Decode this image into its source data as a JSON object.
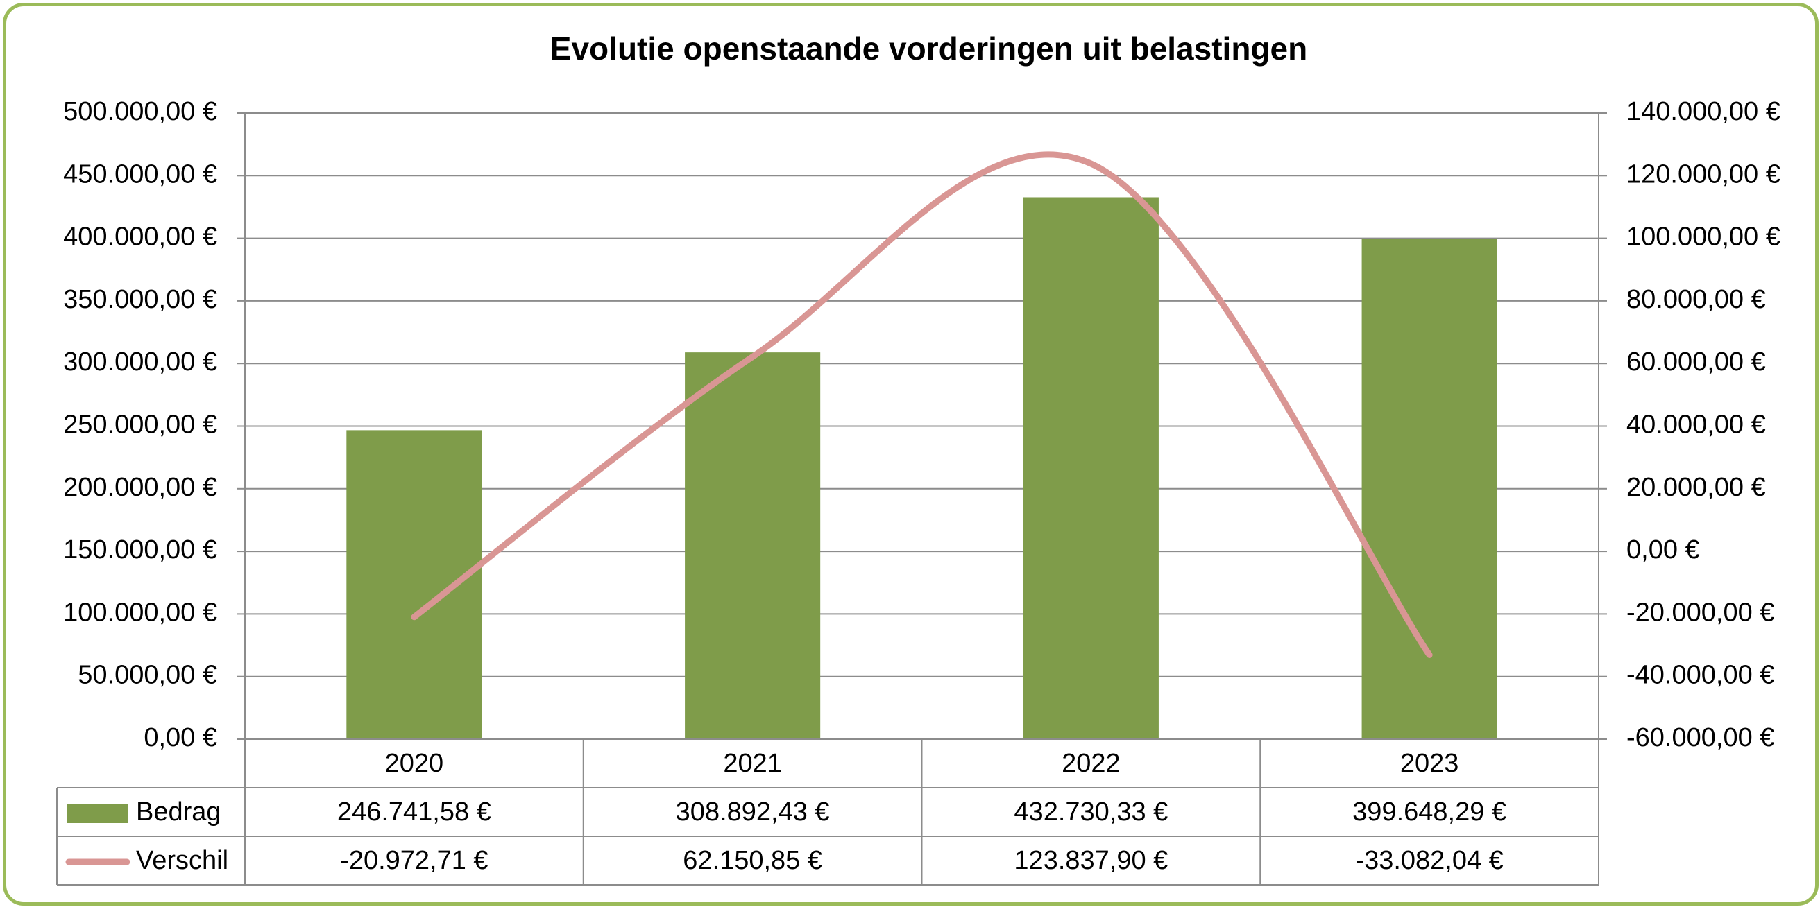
{
  "chart_data": {
    "type": "bar",
    "title": "Evolutie openstaande vorderingen uit belastingen",
    "categories": [
      "2020",
      "2021",
      "2022",
      "2023"
    ],
    "series": [
      {
        "name": "Bedrag",
        "type": "bar",
        "axis": "left",
        "color": "#7f9c4a",
        "values": [
          246741.58,
          308892.43,
          432730.33,
          399648.29
        ],
        "labels": [
          "246.741,58 €",
          "308.892,43 €",
          "432.730,33 €",
          "399.648,29 €"
        ]
      },
      {
        "name": "Verschil",
        "type": "line",
        "smooth": true,
        "axis": "right",
        "color": "#d99694",
        "values": [
          -20972.71,
          62150.85,
          123837.9,
          -33082.04
        ],
        "labels": [
          "-20.972,71 €",
          "62.150,85 €",
          "123.837,90 €",
          "-33.082,04 €"
        ]
      }
    ],
    "y_left": {
      "ylim": [
        0,
        500000
      ],
      "ticks": [
        0,
        50000,
        100000,
        150000,
        200000,
        250000,
        300000,
        350000,
        400000,
        450000,
        500000
      ],
      "tick_labels": [
        "0,00 €",
        "50.000,00 €",
        "100.000,00 €",
        "150.000,00 €",
        "200.000,00 €",
        "250.000,00 €",
        "300.000,00 €",
        "350.000,00 €",
        "400.000,00 €",
        "450.000,00 €",
        "500.000,00 €"
      ]
    },
    "y_right": {
      "ylim": [
        -60000,
        140000
      ],
      "ticks": [
        -60000,
        -40000,
        -20000,
        0,
        20000,
        40000,
        60000,
        80000,
        100000,
        120000,
        140000
      ],
      "tick_labels": [
        "-60.000,00 €",
        "-40.000,00 €",
        "-20.000,00 €",
        "0,00 €",
        "20.000,00 €",
        "40.000,00 €",
        "60.000,00 €",
        "80.000,00 €",
        "100.000,00 €",
        "120.000,00 €",
        "140.000,00 €"
      ]
    },
    "grid": true,
    "data_table": true,
    "frame_color": "#9bbb59"
  }
}
